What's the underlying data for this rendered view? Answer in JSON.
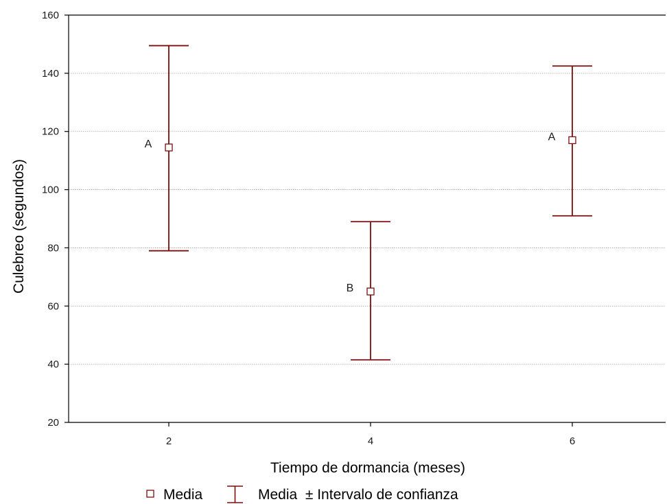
{
  "chart_data": {
    "type": "scatter",
    "xlabel": "Tiempo de dormancia (meses)",
    "ylabel": "Culebreo (segundos)",
    "ylim": [
      20,
      160
    ],
    "yticks": [
      20,
      40,
      60,
      80,
      100,
      120,
      140,
      160
    ],
    "x": [
      "2",
      "4",
      "6"
    ],
    "series": [
      {
        "mean": [
          114.5,
          65,
          117
        ],
        "ci_lower": [
          79,
          41.5,
          91
        ],
        "ci_upper": [
          149.5,
          89,
          142.5
        ],
        "group_letters": [
          "A",
          "B",
          "A"
        ]
      }
    ],
    "grid": {
      "horizontal": true,
      "style": "dotted"
    },
    "legend": {
      "placement": "bottom",
      "mean_label": "Media",
      "interval_label": "Media  ± Intervalo de confianza"
    },
    "colors": {
      "series": "#7b0d0d",
      "axis": "#000000",
      "grid": "#a0a0a0"
    }
  }
}
